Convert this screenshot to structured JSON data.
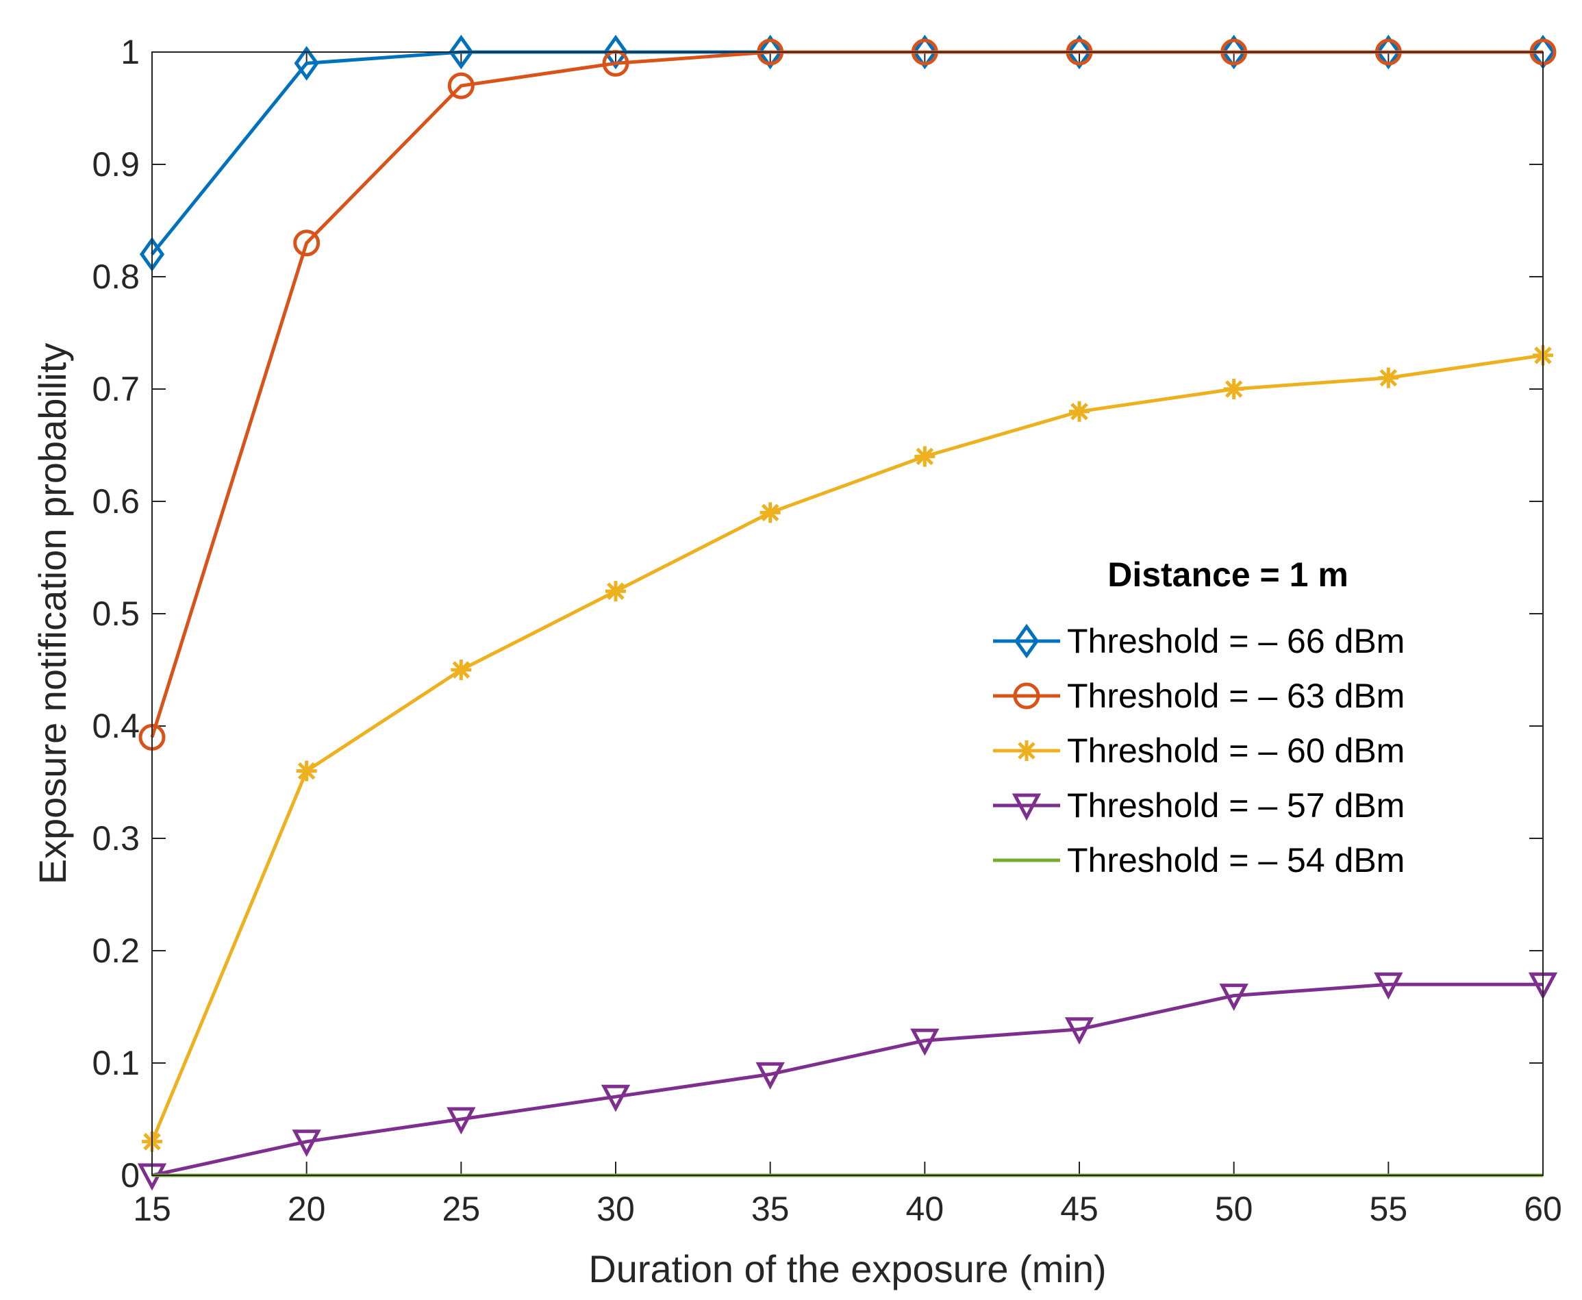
{
  "chart_data": {
    "type": "line",
    "title": "",
    "xlabel": "Duration of the exposure (min)",
    "ylabel": "Exposure notification probability",
    "x": [
      15,
      20,
      25,
      30,
      35,
      40,
      45,
      50,
      55,
      60
    ],
    "xlim": [
      15,
      60
    ],
    "ylim": [
      0,
      1
    ],
    "xticks": [
      15,
      20,
      25,
      30,
      35,
      40,
      45,
      50,
      55,
      60
    ],
    "xtick_labels": [
      "15",
      "20",
      "25",
      "30",
      "35",
      "40",
      "45",
      "50",
      "55",
      "60"
    ],
    "yticks": [
      0,
      0.1,
      0.2,
      0.3,
      0.4,
      0.5,
      0.6,
      0.7,
      0.8,
      0.9,
      1
    ],
    "ytick_labels": [
      "0",
      "0.1",
      "0.2",
      "0.3",
      "0.4",
      "0.5",
      "0.6",
      "0.7",
      "0.8",
      "0.9",
      "1"
    ],
    "grid": false,
    "legend_position": "right",
    "legend_title": "Distance = 1 m",
    "series": [
      {
        "name": "Threshold = – 66 dBm",
        "color": "#0072BD",
        "marker": "diamond",
        "values": [
          0.82,
          0.99,
          1,
          1,
          1,
          1,
          1,
          1,
          1,
          1
        ]
      },
      {
        "name": "Threshold = – 63 dBm",
        "color": "#D95319",
        "marker": "circle",
        "values": [
          0.39,
          0.83,
          0.97,
          0.99,
          1,
          1,
          1,
          1,
          1,
          1
        ]
      },
      {
        "name": "Threshold = – 60 dBm",
        "color": "#EDB120",
        "marker": "asterisk",
        "values": [
          0.03,
          0.36,
          0.45,
          0.52,
          0.59,
          0.64,
          0.68,
          0.7,
          0.71,
          0.73
        ]
      },
      {
        "name": "Threshold = – 57 dBm",
        "color": "#7E2F8E",
        "marker": "triangle-down",
        "values": [
          0,
          0.03,
          0.05,
          0.07,
          0.09,
          0.12,
          0.13,
          0.16,
          0.17,
          0.17
        ]
      },
      {
        "name": "Threshold = – 54 dBm",
        "color": "#77AC30",
        "marker": "none",
        "values": [
          0,
          0,
          0,
          0,
          0,
          0,
          0,
          0,
          0,
          0
        ]
      }
    ]
  }
}
